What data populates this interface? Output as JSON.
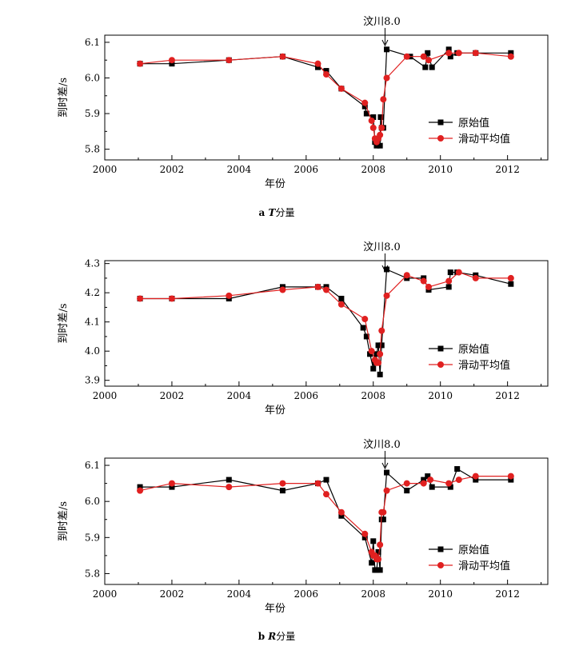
{
  "chart_data": [
    {
      "type": "line",
      "caption_prefix": "a ",
      "caption_var": "T",
      "caption_suffix": "分量",
      "xlabel": "年份",
      "ylabel": "到时差/s",
      "xlim": [
        2000,
        2013.2
      ],
      "ylim": [
        5.77,
        6.12
      ],
      "xticks": [
        2000,
        2002,
        2004,
        2006,
        2008,
        2010,
        2012
      ],
      "yticks": [
        5.8,
        5.9,
        6.0,
        6.1
      ],
      "ytick_labels": [
        "5.8",
        "5.9",
        "6.0",
        "6.1"
      ],
      "annotation": {
        "text": "汶川8.0",
        "x": 2008.35
      },
      "legend_position": "center-right",
      "series": [
        {
          "name": "原始值",
          "color": "#000000",
          "marker": "square",
          "x": [
            2001.05,
            2002.0,
            2003.7,
            2005.3,
            2006.35,
            2006.6,
            2007.05,
            2007.75,
            2007.8,
            2008.0,
            2008.05,
            2008.1,
            2008.15,
            2008.2,
            2008.22,
            2008.25,
            2008.3,
            2008.4,
            2009.1,
            2009.55,
            2009.62,
            2009.75,
            2010.25,
            2010.3,
            2010.5,
            2011.05,
            2012.1
          ],
          "y": [
            6.04,
            6.04,
            6.05,
            6.06,
            6.03,
            6.02,
            5.97,
            5.92,
            5.9,
            5.89,
            5.82,
            5.81,
            5.83,
            5.81,
            5.89,
            5.86,
            5.86,
            6.08,
            6.06,
            6.03,
            6.07,
            6.03,
            6.08,
            6.06,
            6.07,
            6.07,
            6.07
          ]
        },
        {
          "name": "滑动平均值",
          "color": "#e02020",
          "marker": "circle",
          "x": [
            2001.05,
            2002.0,
            2003.7,
            2005.3,
            2006.35,
            2006.6,
            2007.05,
            2007.75,
            2007.95,
            2008.0,
            2008.05,
            2008.1,
            2008.15,
            2008.2,
            2008.25,
            2008.3,
            2008.4,
            2009.0,
            2009.5,
            2009.65,
            2010.25,
            2010.55,
            2011.05,
            2012.1
          ],
          "y": [
            6.04,
            6.05,
            6.05,
            6.06,
            6.04,
            6.01,
            5.97,
            5.93,
            5.88,
            5.86,
            5.83,
            5.82,
            5.83,
            5.84,
            5.86,
            5.94,
            6.0,
            6.06,
            6.06,
            6.05,
            6.07,
            6.07,
            6.07,
            6.06
          ]
        }
      ]
    },
    {
      "type": "line",
      "caption_prefix": "",
      "caption_var": "",
      "caption_suffix": "",
      "xlabel": "年份",
      "ylabel": "到时差/s",
      "xlim": [
        2000,
        2013.2
      ],
      "ylim": [
        3.88,
        4.31
      ],
      "xticks": [
        2000,
        2002,
        2004,
        2006,
        2008,
        2010,
        2012
      ],
      "yticks": [
        3.9,
        4.0,
        4.1,
        4.2,
        4.3
      ],
      "ytick_labels": [
        "3.9",
        "4.0",
        "4.1",
        "4.2",
        "4.3"
      ],
      "annotation": {
        "text": "汶川8.0",
        "x": 2008.35
      },
      "legend_position": "center-right",
      "series": [
        {
          "name": "原始值",
          "color": "#000000",
          "marker": "square",
          "x": [
            2001.05,
            2002.0,
            2003.7,
            2005.3,
            2006.35,
            2006.6,
            2007.05,
            2007.7,
            2007.8,
            2007.9,
            2008.0,
            2008.05,
            2008.1,
            2008.15,
            2008.2,
            2008.25,
            2008.4,
            2009.0,
            2009.5,
            2009.65,
            2010.25,
            2010.3,
            2010.5,
            2011.05,
            2012.1
          ],
          "y": [
            4.18,
            4.18,
            4.18,
            4.22,
            4.22,
            4.22,
            4.18,
            4.08,
            4.05,
            3.99,
            3.94,
            3.96,
            3.99,
            4.02,
            3.92,
            4.02,
            4.28,
            4.25,
            4.25,
            4.21,
            4.22,
            4.27,
            4.27,
            4.26,
            4.23
          ]
        },
        {
          "name": "滑动平均值",
          "color": "#e02020",
          "marker": "circle",
          "x": [
            2001.05,
            2002.0,
            2003.7,
            2005.3,
            2006.35,
            2006.6,
            2007.05,
            2007.75,
            2007.95,
            2008.05,
            2008.1,
            2008.15,
            2008.2,
            2008.25,
            2008.4,
            2009.0,
            2009.5,
            2009.65,
            2010.25,
            2010.55,
            2011.05,
            2012.1
          ],
          "y": [
            4.18,
            4.18,
            4.19,
            4.21,
            4.22,
            4.21,
            4.16,
            4.11,
            4.0,
            3.97,
            3.96,
            3.96,
            3.99,
            4.07,
            4.19,
            4.26,
            4.24,
            4.22,
            4.24,
            4.27,
            4.25,
            4.25
          ]
        }
      ]
    },
    {
      "type": "line",
      "caption_prefix": "b ",
      "caption_var": "R",
      "caption_suffix": "分量",
      "xlabel": "年份",
      "ylabel": "到时差/s",
      "xlim": [
        2000,
        2013.2
      ],
      "ylim": [
        5.77,
        6.12
      ],
      "xticks": [
        2000,
        2002,
        2004,
        2006,
        2008,
        2010,
        2012
      ],
      "yticks": [
        5.8,
        5.9,
        6.0,
        6.1
      ],
      "ytick_labels": [
        "5.8",
        "5.9",
        "6.0",
        "6.1"
      ],
      "annotation": {
        "text": "汶川8.0",
        "x": 2008.35
      },
      "legend_position": "lower-right",
      "series": [
        {
          "name": "原始值",
          "color": "#000000",
          "marker": "square",
          "x": [
            2001.05,
            2002.0,
            2003.7,
            2005.3,
            2006.35,
            2006.6,
            2007.05,
            2007.75,
            2007.95,
            2008.0,
            2008.05,
            2008.1,
            2008.15,
            2008.2,
            2008.25,
            2008.3,
            2008.4,
            2009.0,
            2009.5,
            2009.62,
            2009.75,
            2010.3,
            2010.5,
            2011.05,
            2012.1
          ],
          "y": [
            6.04,
            6.04,
            6.06,
            6.03,
            6.05,
            6.06,
            5.96,
            5.9,
            5.83,
            5.89,
            5.81,
            5.81,
            5.86,
            5.81,
            5.95,
            5.95,
            6.08,
            6.03,
            6.06,
            6.07,
            6.04,
            6.04,
            6.09,
            6.06,
            6.06
          ]
        },
        {
          "name": "滑动平均值",
          "color": "#e02020",
          "marker": "circle",
          "x": [
            2001.05,
            2002.0,
            2003.7,
            2005.3,
            2006.35,
            2006.6,
            2007.05,
            2007.75,
            2007.95,
            2008.0,
            2008.05,
            2008.1,
            2008.15,
            2008.2,
            2008.25,
            2008.3,
            2008.4,
            2009.0,
            2009.5,
            2009.7,
            2010.25,
            2010.55,
            2011.05,
            2012.1
          ],
          "y": [
            6.03,
            6.05,
            6.04,
            6.05,
            6.05,
            6.02,
            5.97,
            5.91,
            5.86,
            5.85,
            5.85,
            5.84,
            5.84,
            5.88,
            5.97,
            5.97,
            6.03,
            6.05,
            6.05,
            6.06,
            6.05,
            6.06,
            6.07,
            6.07
          ]
        }
      ]
    }
  ]
}
